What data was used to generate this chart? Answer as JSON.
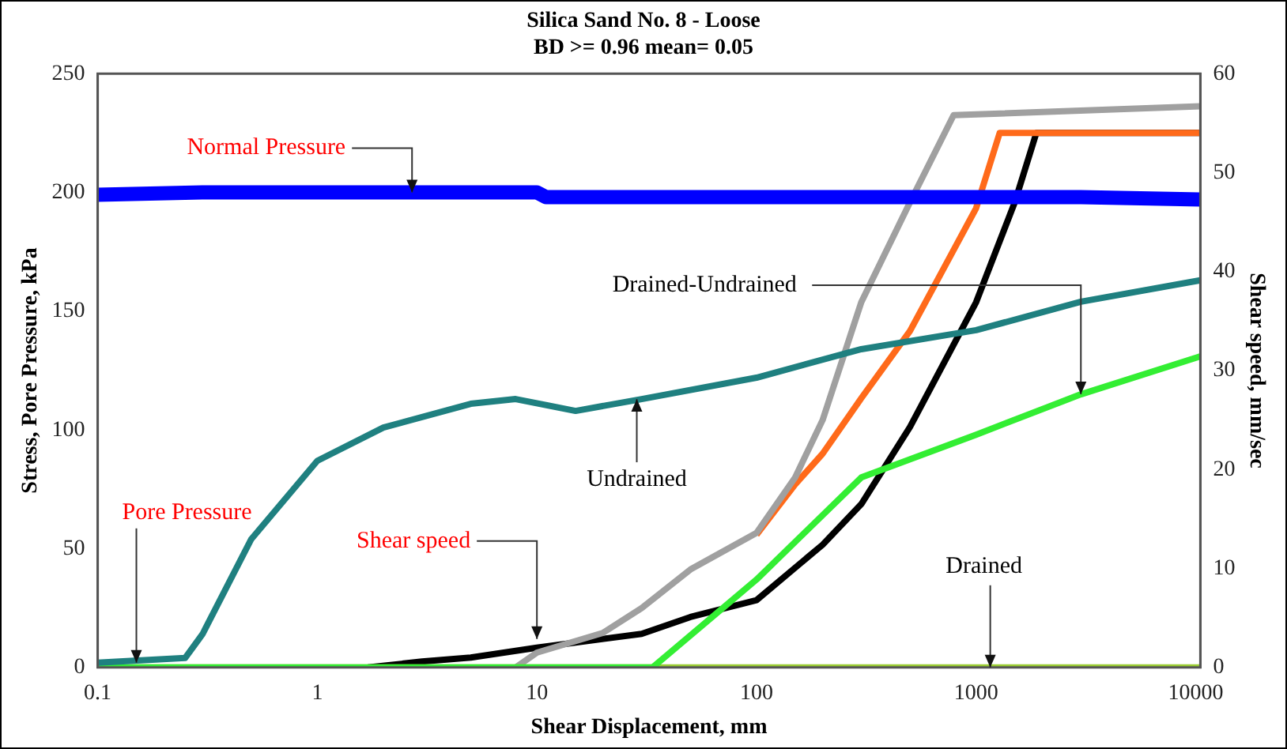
{
  "chart_data": {
    "type": "line",
    "title": "Silica Sand No. 8 - Loose",
    "subtitle": "BD >= 0.96 mean= 0.05",
    "xlabel": "Shear Displacement, mm",
    "ylabel": "Stress, Pore Pressure, kPa",
    "y2label": "Shear speed, mm/sec",
    "log": "x",
    "grid": false,
    "legend": false,
    "marker": "none",
    "line_style": "solid",
    "xlim": [
      0.1,
      10500
    ],
    "xticks": [
      {
        "value": 0.1,
        "label": "0.1"
      },
      1,
      10,
      100,
      1000,
      10000
    ],
    "ylim": [
      0,
      250
    ],
    "yticks": [
      0,
      50,
      100,
      150,
      200,
      250
    ],
    "y2lim": [
      0,
      60
    ],
    "y2ticks": [
      0,
      10,
      20,
      30,
      40,
      50,
      60
    ],
    "series": [
      {
        "color": "#0000ff",
        "x": [
          0.1,
          0.3,
          1,
          3,
          10,
          11,
          30,
          100,
          300,
          1000,
          3000,
          10500
        ],
        "values": [
          199,
          200,
          200,
          200,
          200,
          198,
          198,
          198,
          198,
          198,
          198,
          197
        ]
      },
      {
        "color": "#1f8080",
        "x": [
          0.1,
          0.25,
          0.3,
          0.5,
          1,
          2,
          5,
          8,
          15,
          30,
          100,
          300,
          1000,
          3000,
          10500
        ],
        "values": [
          2,
          4,
          14,
          54,
          87,
          101,
          111,
          113,
          108,
          113,
          122,
          134,
          142,
          154,
          163
        ]
      },
      {
        "color": "#33ee33",
        "x": [
          0.1,
          1,
          10,
          33.6,
          100,
          300,
          1000,
          3000,
          10500
        ],
        "values": [
          0,
          0,
          0,
          0,
          37,
          80,
          98,
          115,
          131
        ]
      },
      {
        "color": "#9acd32",
        "x": [
          0.1,
          10500
        ],
        "values": [
          0,
          0
        ]
      },
      {
        "color": "#a0a0a0",
        "axis": "y2",
        "x": [
          8,
          10,
          20,
          30,
          50,
          100,
          150,
          200,
          300,
          500,
          790,
          10500
        ],
        "values": [
          0,
          1.5,
          3.5,
          6,
          9.9,
          13.6,
          19.2,
          25,
          36.9,
          47,
          55.8,
          56.7
        ]
      },
      {
        "color": "#ff6a1a",
        "axis": "y2",
        "x": [
          100,
          150,
          200,
          300,
          500,
          1000,
          1280,
          10500
        ],
        "values": [
          13.4,
          18.5,
          21.6,
          27.2,
          34,
          46.4,
          54,
          54
        ]
      },
      {
        "color": "#000000",
        "axis": "y2",
        "x": [
          1.7,
          3,
          5,
          10,
          30,
          50,
          100,
          200,
          300,
          500,
          1000,
          1500,
          1880,
          10500
        ],
        "values": [
          0,
          0.6,
          1,
          2,
          3.4,
          5.1,
          6.8,
          12.4,
          16.5,
          24.3,
          36.9,
          47,
          54,
          54
        ]
      }
    ],
    "annotations": [
      {
        "text": "Normal Pressure",
        "x": 2.7,
        "y": 200
      },
      {
        "text": "Pore Pressure",
        "x": 0.15,
        "y": 2
      },
      {
        "text": "Shear speed",
        "x": 10,
        "y": 12
      },
      {
        "text": "Undrained",
        "x": 28.5,
        "y": 113
      },
      {
        "text": "Drained-Undrained",
        "x": 3000,
        "y": 115
      },
      {
        "text": "Drained",
        "x": 1160,
        "y": 0
      }
    ]
  }
}
